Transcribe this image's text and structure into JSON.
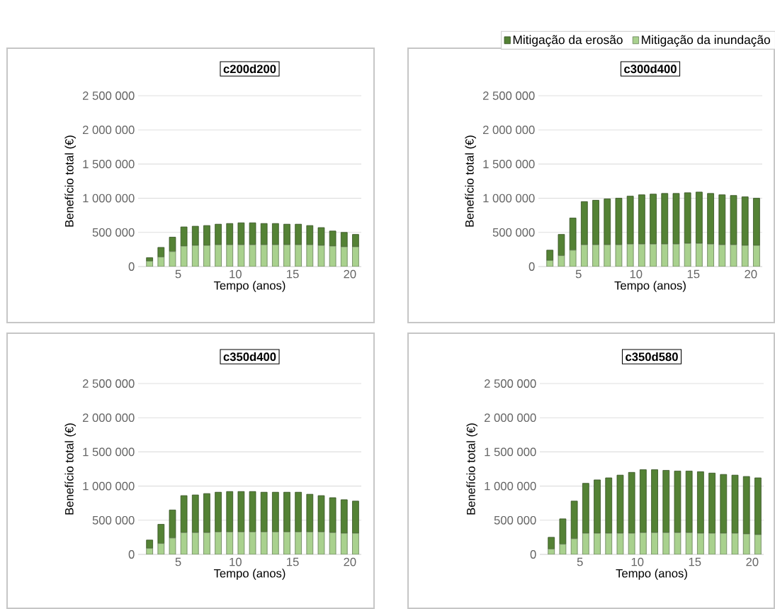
{
  "chart_data": [
    {
      "type": "bar",
      "title": "c200d200",
      "xlabel": "Tempo (anos)",
      "ylabel": "Benefício total (€)",
      "stacked": true,
      "grid": "y",
      "legend": false,
      "x": [
        2.5,
        3.5,
        4.5,
        5.5,
        6.5,
        7.5,
        8.5,
        9.5,
        10.5,
        11.5,
        12.5,
        13.5,
        14.5,
        15.5,
        16.5,
        17.5,
        18.5,
        19.5,
        20.5
      ],
      "xlim": [
        1.5,
        21
      ],
      "xticks": [
        5,
        10,
        15,
        20
      ],
      "ylim": [
        0,
        2500000
      ],
      "yticks": [
        {
          "value": 0,
          "label": "0"
        },
        {
          "value": 500000,
          "label": "500 000"
        },
        {
          "value": 1000000,
          "label": "1 000 000"
        },
        {
          "value": 1500000,
          "label": "1 500 000"
        },
        {
          "value": 2000000,
          "label": "2 000 000"
        },
        {
          "value": 2500000,
          "label": "2 500 000"
        }
      ],
      "series": [
        {
          "color": "#a9d18e",
          "values": [
            80000,
            140000,
            220000,
            300000,
            310000,
            310000,
            320000,
            320000,
            320000,
            320000,
            320000,
            320000,
            320000,
            320000,
            320000,
            310000,
            300000,
            290000,
            290000
          ]
        },
        {
          "color": "#548235",
          "values": [
            50000,
            140000,
            210000,
            280000,
            280000,
            290000,
            300000,
            310000,
            320000,
            320000,
            310000,
            310000,
            300000,
            300000,
            280000,
            260000,
            220000,
            210000,
            180000
          ]
        }
      ]
    },
    {
      "type": "bar",
      "title": "c300d400",
      "xlabel": "Tempo (anos)",
      "ylabel": "Benefício total (€)",
      "stacked": true,
      "grid": "y",
      "legend": "top",
      "x": [
        2.5,
        3.5,
        4.5,
        5.5,
        6.5,
        7.5,
        8.5,
        9.5,
        10.5,
        11.5,
        12.5,
        13.5,
        14.5,
        15.5,
        16.5,
        17.5,
        18.5,
        19.5,
        20.5
      ],
      "xlim": [
        1.5,
        21
      ],
      "xticks": [
        5,
        10,
        15,
        20
      ],
      "ylim": [
        0,
        2500000
      ],
      "yticks": [
        {
          "value": 0,
          "label": "0"
        },
        {
          "value": 500000,
          "label": "500 000"
        },
        {
          "value": 1000000,
          "label": "1 000 000"
        },
        {
          "value": 1500000,
          "label": "1 500 000"
        },
        {
          "value": 2000000,
          "label": "2 000 000"
        },
        {
          "value": 2500000,
          "label": "2 500 000"
        }
      ],
      "series": [
        {
          "name": "Mitigação da inundação",
          "color": "#a9d18e",
          "values": [
            90000,
            160000,
            240000,
            320000,
            320000,
            320000,
            320000,
            330000,
            330000,
            330000,
            330000,
            330000,
            340000,
            340000,
            330000,
            320000,
            320000,
            310000,
            310000
          ]
        },
        {
          "name": "Mitigação da erosão",
          "color": "#548235",
          "values": [
            150000,
            310000,
            470000,
            630000,
            650000,
            670000,
            680000,
            700000,
            720000,
            730000,
            740000,
            740000,
            740000,
            750000,
            740000,
            730000,
            720000,
            710000,
            690000
          ]
        }
      ]
    },
    {
      "type": "bar",
      "title": "c350d400",
      "xlabel": "Tempo (anos)",
      "ylabel": "Benefício total (€)",
      "stacked": true,
      "grid": "y",
      "legend": false,
      "x": [
        2.5,
        3.5,
        4.5,
        5.5,
        6.5,
        7.5,
        8.5,
        9.5,
        10.5,
        11.5,
        12.5,
        13.5,
        14.5,
        15.5,
        16.5,
        17.5,
        18.5,
        19.5,
        20.5
      ],
      "xlim": [
        1.5,
        21
      ],
      "xticks": [
        5,
        10,
        15,
        20
      ],
      "ylim": [
        0,
        2500000
      ],
      "yticks": [
        {
          "value": 0,
          "label": "0"
        },
        {
          "value": 500000,
          "label": "500 000"
        },
        {
          "value": 1000000,
          "label": "1 000 000"
        },
        {
          "value": 1500000,
          "label": "1 500 000"
        },
        {
          "value": 2000000,
          "label": "2 000 000"
        },
        {
          "value": 2500000,
          "label": "2 500 000"
        }
      ],
      "series": [
        {
          "color": "#a9d18e",
          "values": [
            90000,
            160000,
            240000,
            320000,
            320000,
            320000,
            330000,
            330000,
            330000,
            330000,
            330000,
            330000,
            330000,
            330000,
            330000,
            330000,
            320000,
            310000,
            310000
          ]
        },
        {
          "color": "#548235",
          "values": [
            120000,
            280000,
            410000,
            540000,
            550000,
            570000,
            580000,
            590000,
            590000,
            590000,
            580000,
            580000,
            580000,
            580000,
            550000,
            530000,
            510000,
            490000,
            470000
          ]
        }
      ]
    },
    {
      "type": "bar",
      "title": "c350d580",
      "xlabel": "Tempo (anos)",
      "ylabel": "Benefício total (€)",
      "stacked": true,
      "grid": "y",
      "legend": false,
      "x": [
        2.5,
        3.5,
        4.5,
        5.5,
        6.5,
        7.5,
        8.5,
        9.5,
        10.5,
        11.5,
        12.5,
        13.5,
        14.5,
        15.5,
        16.5,
        17.5,
        18.5,
        19.5,
        20.5
      ],
      "xlim": [
        1.5,
        21
      ],
      "xticks": [
        5,
        10,
        15,
        20
      ],
      "ylim": [
        0,
        2500000
      ],
      "yticks": [
        {
          "value": 0,
          "label": "0"
        },
        {
          "value": 500000,
          "label": "500 000"
        },
        {
          "value": 1000000,
          "label": "1 000 000"
        },
        {
          "value": 1500000,
          "label": "1 500 000"
        },
        {
          "value": 2000000,
          "label": "2 000 000"
        },
        {
          "value": 2500000,
          "label": "2 500 000"
        }
      ],
      "series": [
        {
          "color": "#a9d18e",
          "values": [
            80000,
            150000,
            230000,
            310000,
            310000,
            310000,
            310000,
            310000,
            320000,
            320000,
            320000,
            320000,
            320000,
            310000,
            310000,
            310000,
            310000,
            300000,
            290000
          ]
        },
        {
          "color": "#548235",
          "values": [
            170000,
            370000,
            550000,
            730000,
            780000,
            810000,
            850000,
            890000,
            920000,
            920000,
            910000,
            900000,
            900000,
            900000,
            880000,
            860000,
            850000,
            840000,
            830000
          ]
        }
      ]
    }
  ]
}
